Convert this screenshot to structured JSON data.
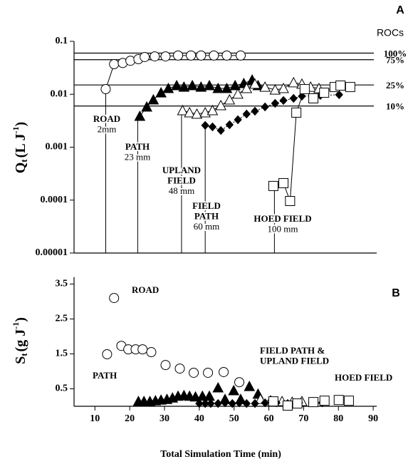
{
  "chart_data": [
    {
      "type": "scatter",
      "panel": "A",
      "log_y": true,
      "ylabel": [
        "Q",
        "t",
        "(L J",
        "-1",
        ")"
      ],
      "xlim": [
        4,
        91
      ],
      "ylim": [
        1e-05,
        0.1
      ],
      "yticks": [
        0.1,
        0.01,
        0.001,
        0.0001,
        1e-05
      ],
      "legend_title": "ROCs",
      "roc_lines": [
        {
          "label": "100%",
          "value": 0.06
        },
        {
          "label": "75%",
          "value": 0.045
        },
        {
          "label": "25%",
          "value": 0.015
        },
        {
          "label": "10%",
          "value": 0.006
        }
      ],
      "onsets": [
        {
          "lines": [
            "ROAD",
            "2mm"
          ],
          "x": 13.1
        },
        {
          "lines": [
            "PATH",
            "23 mm"
          ],
          "x": 22.3
        },
        {
          "lines": [
            "UPLAND",
            "FIELD",
            "48 mm"
          ],
          "x": 34.9
        },
        {
          "lines": [
            "FIELD",
            "PATH",
            "60 mm"
          ],
          "x": 41.7
        },
        {
          "lines": [
            "HOED FIELD",
            "100 mm"
          ],
          "x": 61.6
        }
      ],
      "series": [
        {
          "marker": "circle",
          "filled": false,
          "connect": "solid",
          "x": [
            13.1,
            15.5,
            18,
            20.2,
            22.5,
            24.3,
            27.2,
            30.3,
            33.9,
            37.6,
            40.5,
            44.2,
            47.9,
            51.9
          ],
          "values": [
            0.0125,
            0.037,
            0.039,
            0.043,
            0.046,
            0.0506,
            0.052,
            0.052,
            0.054,
            0.054,
            0.054,
            0.054,
            0.054,
            0.054
          ]
        },
        {
          "marker": "triangle",
          "filled": true,
          "connect": "solid",
          "x": [
            22.9,
            24.9,
            26.8,
            29.0,
            31.1,
            33.5,
            35.6,
            38.0,
            40.5,
            42.9,
            45.4,
            47.9,
            50.3,
            52.8,
            55.2,
            56.9
          ],
          "values": [
            0.00385,
            0.00577,
            0.00787,
            0.0107,
            0.0129,
            0.0146,
            0.0137,
            0.0146,
            0.0137,
            0.0146,
            0.0129,
            0.0129,
            0.0146,
            0.016,
            0.0187,
            0.0146
          ]
        },
        {
          "marker": "triangle",
          "filled": false,
          "connect": "solid",
          "x": [
            35.2,
            37.2,
            39.3,
            41.7,
            43.8,
            46.2,
            48.7,
            51.1,
            53.6,
            56.0,
            58.9,
            61.8,
            64.2,
            67.1,
            69.5,
            72.0,
            74.4
          ],
          "values": [
            0.00494,
            0.0045,
            0.00423,
            0.0045,
            0.00494,
            0.00614,
            0.00787,
            0.0101,
            0.0129,
            0.0156,
            0.0137,
            0.0121,
            0.0129,
            0.0166,
            0.0156,
            0.0137,
            0.0129
          ]
        },
        {
          "marker": "diamond",
          "filled": true,
          "connect": "dotted",
          "x": [
            41.7,
            43.8,
            46.2,
            48.7,
            51.1,
            53.6,
            56.0,
            58.9,
            61.8,
            64.2,
            67.1,
            69.5,
            74.8,
            80.2
          ],
          "values": [
            0.00258,
            0.00242,
            0.00207,
            0.00266,
            0.0033,
            0.00423,
            0.00479,
            0.00577,
            0.00673,
            0.00762,
            0.00837,
            0.0092,
            0.0095,
            0.0098
          ]
        },
        {
          "marker": "square",
          "filled": false,
          "connect": "solid",
          "x": [
            61.3,
            64.2,
            66.1,
            67.9,
            70.3,
            72.8,
            75.9,
            78.9,
            80.6,
            83.4
          ],
          "values": [
            0.000185,
            0.000209,
            9.62e-05,
            0.0045,
            0.0125,
            0.00837,
            0.0107,
            0.0137,
            0.0146,
            0.0137
          ]
        }
      ]
    },
    {
      "type": "scatter",
      "panel": "B",
      "log_y": false,
      "ylabel": [
        "S",
        "t",
        "(g J",
        "-1",
        ")"
      ],
      "xlabel": "Total Simulation Time (min)",
      "xlim": [
        4,
        91
      ],
      "xticks": [
        10,
        20,
        30,
        40,
        50,
        60,
        70,
        80,
        90
      ],
      "ylim": [
        0,
        3.7
      ],
      "yticks": [
        0.5,
        1.5,
        2.5,
        3.5
      ],
      "annotations": [
        {
          "lines": [
            "ROAD"
          ]
        },
        {
          "lines": [
            "PATH"
          ]
        },
        {
          "lines": [
            "FIELD  PATH &",
            "UPLAND FIELD"
          ]
        },
        {
          "lines": [
            "HOED FIELD"
          ]
        }
      ],
      "series": [
        {
          "marker": "circle",
          "filled": false,
          "x": [
            13.5,
            15.5,
            17.6,
            19.6,
            21.7,
            23.7,
            26.2,
            30.3,
            34.4,
            38.4,
            42.5,
            47.0,
            51.5
          ],
          "values": [
            1.49,
            3.1,
            1.73,
            1.63,
            1.63,
            1.63,
            1.55,
            1.18,
            1.08,
            0.96,
            0.96,
            0.98,
            0.69
          ]
        },
        {
          "marker": "triangle",
          "filled": true,
          "x": [
            22.5,
            24.1,
            25.8,
            27.4,
            29.0,
            30.7,
            32.3,
            33.9,
            35.6,
            37.2,
            38.9,
            40.9,
            42.9,
            45.4,
            47.4,
            49.9,
            51.9,
            54.4,
            56.9
          ],
          "values": [
            0.14,
            0.14,
            0.14,
            0.16,
            0.18,
            0.2,
            0.24,
            0.29,
            0.31,
            0.29,
            0.27,
            0.29,
            0.29,
            0.53,
            0.2,
            0.45,
            0.2,
            0.57,
            0.35
          ]
        },
        {
          "marker": "triangle",
          "filled": false,
          "x": [
            57.6,
            60.5,
            63.8,
            66.7,
            69.5
          ],
          "values": [
            0.2,
            0.16,
            0.14,
            0.12,
            0.14
          ]
        },
        {
          "marker": "diamond",
          "filled": true,
          "x": [
            40.0,
            41.7,
            43.3,
            45.4,
            47.4,
            49.5,
            51.5,
            53.6,
            56.0,
            58.9,
            62.2,
            65.4,
            68.7,
            72.4,
            75.3
          ],
          "values": [
            0.08,
            0.08,
            0.08,
            0.08,
            0.1,
            0.08,
            0.1,
            0.08,
            0.08,
            0.1,
            0.1,
            0.08,
            0.1,
            0.1,
            0.1
          ]
        },
        {
          "marker": "square",
          "filled": false,
          "x": [
            61.3,
            65.4,
            68.2,
            72.8,
            76.0,
            80.1,
            83.0
          ],
          "values": [
            0.14,
            0.02,
            0.08,
            0.12,
            0.16,
            0.18,
            0.16
          ]
        }
      ]
    }
  ]
}
